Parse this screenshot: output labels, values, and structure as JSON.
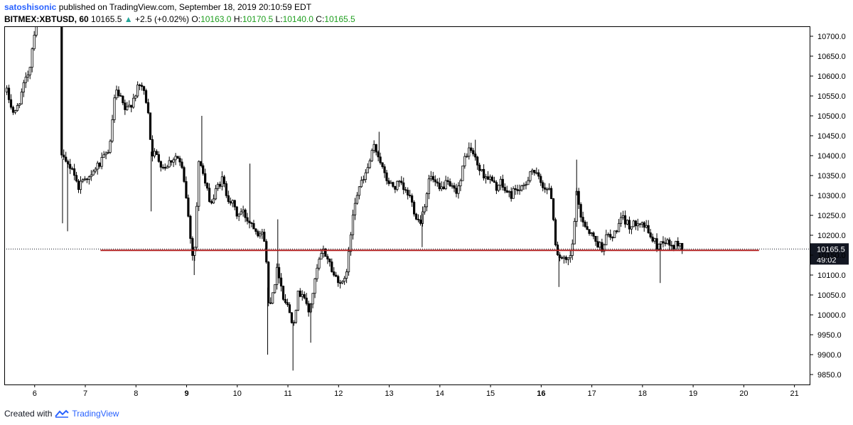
{
  "header": {
    "author": "satoshisonic",
    "published_text": "published on TradingView.com, September 18, 2019 20:10:59 EDT",
    "symbol": "BITMEX:XBTUSD, 60",
    "last": "10165.5",
    "change": "+2.5 (+0.02%)",
    "o_label": "O:",
    "o_value": "10163.0",
    "h_label": "H:",
    "h_value": "10170.5",
    "l_label": "L:",
    "l_value": "10140.0",
    "c_label": "C:",
    "c_value": "10165.5"
  },
  "footer": {
    "created_with": "Created with",
    "brand": "TradingView"
  },
  "price_label": {
    "value": "10165.5",
    "countdown": "49:02"
  },
  "colors": {
    "candle": "#000000",
    "support_line": "#b22222",
    "price_label_bg": "#131722",
    "brand": "#2962ff"
  },
  "chart_data": {
    "type": "candlestick",
    "title": "",
    "xlabel": "",
    "ylabel": "",
    "ylim": [
      9825,
      10725
    ],
    "xlim": [
      5.4,
      21.3
    ],
    "x_ticks": [
      "6",
      "7",
      "8",
      "9",
      "10",
      "11",
      "12",
      "13",
      "14",
      "15",
      "16",
      "17",
      "18",
      "19",
      "20",
      "21"
    ],
    "x_tick_values": [
      6,
      7,
      8,
      9,
      10,
      11,
      12,
      13,
      14,
      15,
      16,
      17,
      18,
      19,
      20,
      21
    ],
    "bold_ticks": [
      "9",
      "16"
    ],
    "y_ticks": [
      "10700.0",
      "10650.0",
      "10600.0",
      "10550.0",
      "10500.0",
      "10450.0",
      "10400.0",
      "10350.0",
      "10300.0",
      "10250.0",
      "10200.0",
      "10150.0",
      "10100.0",
      "10050.0",
      "10000.0",
      "9950.0",
      "9900.0",
      "9850.0"
    ],
    "y_tick_values": [
      10700,
      10650,
      10600,
      10550,
      10500,
      10450,
      10400,
      10350,
      10300,
      10250,
      10200,
      10150,
      10100,
      10050,
      10000,
      9950,
      9900,
      9850
    ],
    "support_line": {
      "price": 10162,
      "x_start": 7.3,
      "x_end": 20.3
    },
    "current_price_line": 10165.5,
    "path": [
      [
        5.45,
        10560
      ],
      [
        5.6,
        10500
      ],
      [
        5.75,
        10560
      ],
      [
        5.9,
        10620
      ],
      [
        6.0,
        10720
      ],
      [
        6.1,
        10780
      ],
      [
        6.3,
        10760
      ],
      [
        6.5,
        10750
      ],
      [
        6.52,
        10400
      ],
      [
        6.6,
        10380
      ],
      [
        6.75,
        10370
      ],
      [
        6.85,
        10320
      ],
      [
        7.0,
        10350
      ],
      [
        7.1,
        10340
      ],
      [
        7.2,
        10370
      ],
      [
        7.3,
        10380
      ],
      [
        7.4,
        10400
      ],
      [
        7.5,
        10430
      ],
      [
        7.55,
        10520
      ],
      [
        7.6,
        10560
      ],
      [
        7.7,
        10540
      ],
      [
        7.8,
        10510
      ],
      [
        7.9,
        10530
      ],
      [
        8.0,
        10560
      ],
      [
        8.1,
        10580
      ],
      [
        8.15,
        10560
      ],
      [
        8.2,
        10540
      ],
      [
        8.25,
        10510
      ],
      [
        8.3,
        10410
      ],
      [
        8.4,
        10400
      ],
      [
        8.55,
        10370
      ],
      [
        8.7,
        10390
      ],
      [
        8.8,
        10400
      ],
      [
        8.9,
        10370
      ],
      [
        9.0,
        10290
      ],
      [
        9.1,
        10160
      ],
      [
        9.15,
        10150
      ],
      [
        9.25,
        10400
      ],
      [
        9.3,
        10370
      ],
      [
        9.4,
        10310
      ],
      [
        9.5,
        10280
      ],
      [
        9.6,
        10320
      ],
      [
        9.7,
        10340
      ],
      [
        9.8,
        10300
      ],
      [
        9.9,
        10280
      ],
      [
        10.0,
        10250
      ],
      [
        10.1,
        10260
      ],
      [
        10.2,
        10240
      ],
      [
        10.3,
        10230
      ],
      [
        10.4,
        10210
      ],
      [
        10.5,
        10200
      ],
      [
        10.55,
        10190
      ],
      [
        10.62,
        10020
      ],
      [
        10.7,
        10060
      ],
      [
        10.8,
        10120
      ],
      [
        10.9,
        10050
      ],
      [
        11.0,
        10020
      ],
      [
        11.1,
        9980
      ],
      [
        11.2,
        10050
      ],
      [
        11.3,
        10060
      ],
      [
        11.4,
        10000
      ],
      [
        11.5,
        10060
      ],
      [
        11.6,
        10130
      ],
      [
        11.7,
        10160
      ],
      [
        11.8,
        10140
      ],
      [
        11.9,
        10100
      ],
      [
        12.0,
        10090
      ],
      [
        12.1,
        10070
      ],
      [
        12.2,
        10150
      ],
      [
        12.3,
        10280
      ],
      [
        12.4,
        10320
      ],
      [
        12.5,
        10340
      ],
      [
        12.6,
        10380
      ],
      [
        12.7,
        10420
      ],
      [
        12.8,
        10400
      ],
      [
        12.9,
        10350
      ],
      [
        13.0,
        10330
      ],
      [
        13.1,
        10320
      ],
      [
        13.2,
        10330
      ],
      [
        13.3,
        10310
      ],
      [
        13.4,
        10300
      ],
      [
        13.5,
        10260
      ],
      [
        13.6,
        10230
      ],
      [
        13.7,
        10280
      ],
      [
        13.8,
        10350
      ],
      [
        13.9,
        10330
      ],
      [
        14.0,
        10310
      ],
      [
        14.1,
        10330
      ],
      [
        14.2,
        10320
      ],
      [
        14.3,
        10310
      ],
      [
        14.4,
        10330
      ],
      [
        14.5,
        10400
      ],
      [
        14.6,
        10420
      ],
      [
        14.7,
        10390
      ],
      [
        14.8,
        10360
      ],
      [
        14.9,
        10350
      ],
      [
        15.0,
        10340
      ],
      [
        15.1,
        10320
      ],
      [
        15.2,
        10330
      ],
      [
        15.3,
        10310
      ],
      [
        15.4,
        10300
      ],
      [
        15.5,
        10320
      ],
      [
        15.6,
        10310
      ],
      [
        15.7,
        10330
      ],
      [
        15.8,
        10370
      ],
      [
        15.9,
        10350
      ],
      [
        16.0,
        10330
      ],
      [
        16.1,
        10320
      ],
      [
        16.2,
        10300
      ],
      [
        16.3,
        10160
      ],
      [
        16.4,
        10140
      ],
      [
        16.5,
        10130
      ],
      [
        16.6,
        10150
      ],
      [
        16.7,
        10300
      ],
      [
        16.8,
        10240
      ],
      [
        16.9,
        10220
      ],
      [
        17.0,
        10200
      ],
      [
        17.1,
        10180
      ],
      [
        17.2,
        10170
      ],
      [
        17.3,
        10200
      ],
      [
        17.4,
        10190
      ],
      [
        17.5,
        10220
      ],
      [
        17.6,
        10240
      ],
      [
        17.7,
        10230
      ],
      [
        17.8,
        10220
      ],
      [
        17.9,
        10240
      ],
      [
        18.0,
        10230
      ],
      [
        18.1,
        10210
      ],
      [
        18.2,
        10190
      ],
      [
        18.3,
        10170
      ],
      [
        18.4,
        10190
      ],
      [
        18.5,
        10180
      ],
      [
        18.6,
        10170
      ],
      [
        18.7,
        10180
      ],
      [
        18.8,
        10166
      ]
    ],
    "spikes": [
      [
        6.55,
        10230
      ],
      [
        6.65,
        10210
      ],
      [
        8.3,
        10260
      ],
      [
        9.15,
        10100
      ],
      [
        9.3,
        10500
      ],
      [
        10.25,
        10380
      ],
      [
        10.6,
        9900
      ],
      [
        10.8,
        10240
      ],
      [
        11.1,
        9860
      ],
      [
        11.45,
        9930
      ],
      [
        12.8,
        10460
      ],
      [
        13.65,
        10170
      ],
      [
        14.7,
        10440
      ],
      [
        16.35,
        10070
      ],
      [
        16.7,
        10390
      ],
      [
        18.35,
        10080
      ]
    ]
  }
}
